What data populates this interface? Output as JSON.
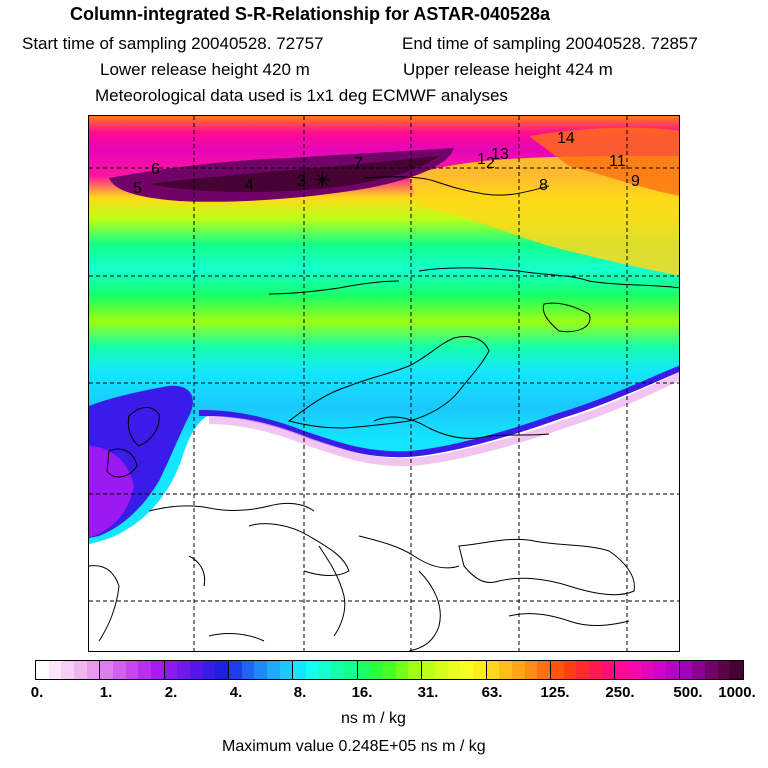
{
  "header": {
    "title": "Column-integrated S-R-Relationship for ASTAR-040528a",
    "start_time": "Start time of sampling 20040528. 72757",
    "end_time": "End time of sampling 20040528. 72857",
    "lower_height": "Lower release height  420 m",
    "upper_height": "Upper release height  424 m",
    "met_data": "Meteorological data used is 1x1 deg ECMWF analyses"
  },
  "map": {
    "site_markers": [
      "14",
      "1",
      "2",
      "13",
      "11",
      "7",
      "6",
      "5",
      "4",
      "3",
      "8",
      "9"
    ],
    "release_marker": "✳"
  },
  "legend": {
    "ticks": [
      "0.",
      "1.",
      "2.",
      "4.",
      "8.",
      "16.",
      "31.",
      "63.",
      "125.",
      "250.",
      "500.",
      "1000."
    ],
    "segments": [
      [
        "#ffffff",
        "#fbe7fb",
        "#f5cdf5",
        "#efb5ef",
        "#e69be6"
      ],
      [
        "#dd7fe8",
        "#d061ec",
        "#c547ee",
        "#b82ff0",
        "#a81af2"
      ],
      [
        "#8c1af0",
        "#7118ee",
        "#5516ec",
        "#3a1ce8",
        "#2020e4"
      ],
      [
        "#1f3cef",
        "#2064f5",
        "#1f88f9",
        "#1eaafb",
        "#1ac8fd"
      ],
      [
        "#14e6ff",
        "#10ffee",
        "#14ffd0",
        "#14ffac",
        "#14ff8a"
      ],
      [
        "#18ff66",
        "#2aff3e",
        "#46ff24",
        "#72ff18",
        "#9cff14"
      ],
      [
        "#bcff16",
        "#d4ff18",
        "#e6ff1c",
        "#f6ff1e",
        "#ffee1c"
      ],
      [
        "#ffd81a",
        "#ffbf18",
        "#ffa616",
        "#ff8c14",
        "#ff7012"
      ],
      [
        "#ff5410",
        "#ff3c14",
        "#ff2a30",
        "#ff1a54",
        "#ff0c78"
      ],
      [
        "#ff0a96",
        "#f608aa",
        "#e606b8",
        "#d004c2",
        "#b803c4"
      ],
      [
        "#a002b8",
        "#880290",
        "#700268",
        "#5a0246",
        "#460232"
      ]
    ],
    "units": "ns m / kg",
    "max_value": "Maximum value  0.248E+05 ns m / kg"
  }
}
